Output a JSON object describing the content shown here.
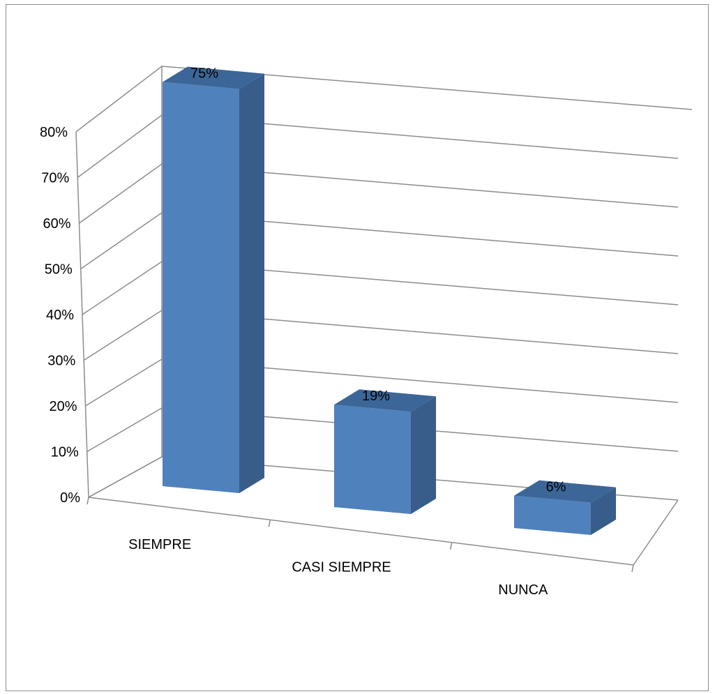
{
  "chart_data": {
    "type": "bar",
    "categories": [
      "SIEMPRE",
      "CASI SIEMPRE",
      "NUNCA"
    ],
    "values": [
      0.75,
      0.19,
      0.06
    ],
    "data_labels": [
      "75%",
      "19%",
      "6%"
    ],
    "y_ticks": [
      "0%",
      "10%",
      "20%",
      "30%",
      "40%",
      "50%",
      "60%",
      "70%",
      "80%"
    ],
    "ylim": [
      0,
      0.8
    ],
    "grid": true,
    "style": "3d-column",
    "colors": {
      "front": "#4f81bd",
      "side": "#385d8a",
      "top": "#3c6697",
      "grid": "#8c8c8c"
    }
  }
}
